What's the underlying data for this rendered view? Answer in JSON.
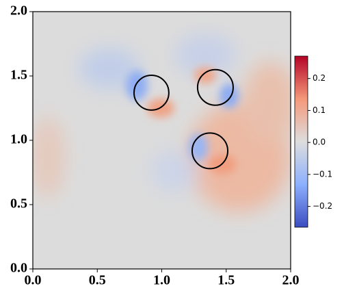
{
  "chart_data": {
    "type": "field",
    "xlim": [
      0,
      2
    ],
    "ylim": [
      0,
      2
    ],
    "xticks": [
      {
        "value": 0,
        "label": "0.0"
      },
      0.5,
      {
        "value": 1,
        "label": "1.0"
      },
      1.5,
      {
        "value": 2,
        "label": "2.0"
      }
    ],
    "yticks": [
      {
        "value": 0,
        "label": "0.0"
      },
      0.5,
      {
        "value": 1,
        "label": "1.0"
      },
      1.5,
      {
        "value": 2,
        "label": "2.0"
      }
    ],
    "circles": [
      {
        "x": 0.92,
        "y": 1.37,
        "r": 0.135
      },
      {
        "x": 1.416,
        "y": 1.411,
        "r": 0.138
      },
      {
        "x": 1.374,
        "y": 0.918,
        "r": 0.138
      }
    ],
    "colorbar": {
      "lim": [
        -0.265,
        0.27
      ],
      "ticks": [
        {
          "value": -0.2,
          "label": "−0.2"
        },
        {
          "value": -0.1,
          "label": "−0.1"
        },
        {
          "value": 0,
          "label": "0.0"
        },
        0.1,
        0.2
      ]
    }
  }
}
